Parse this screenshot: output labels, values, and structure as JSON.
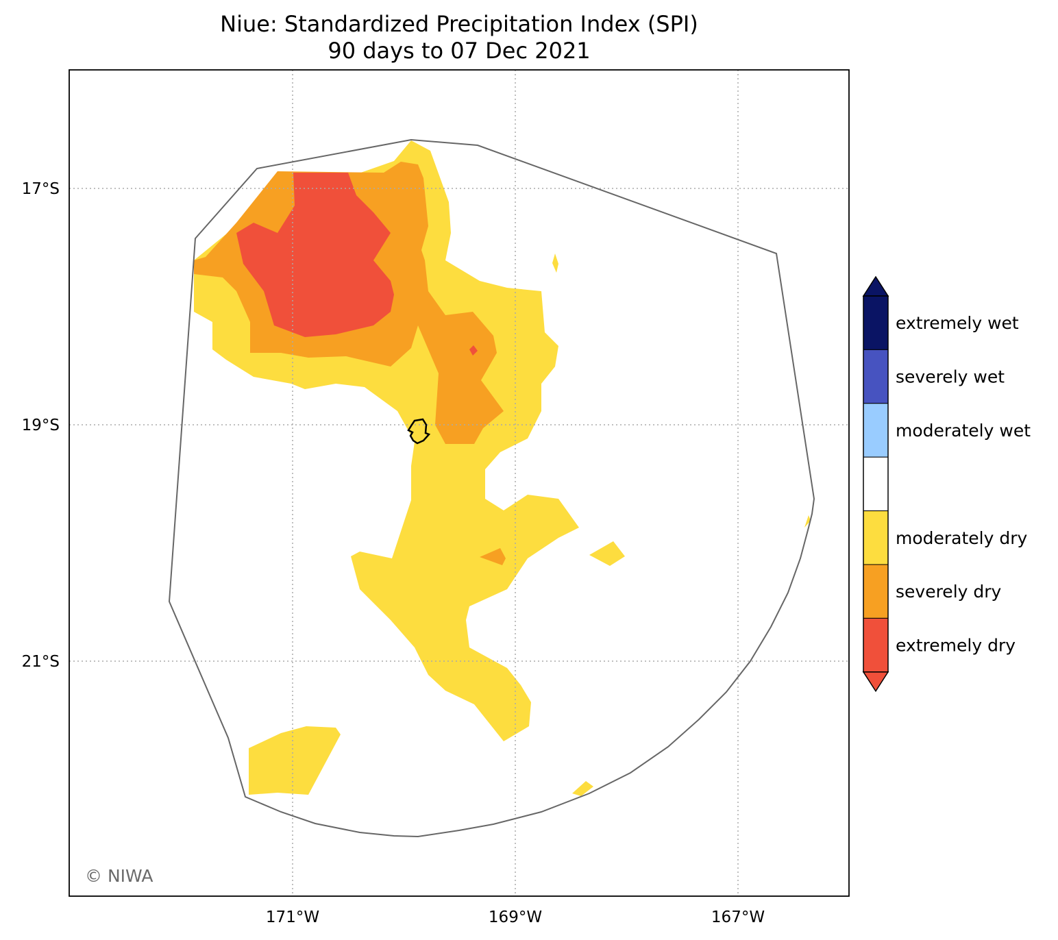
{
  "title": {
    "line1": "Niue: Standardized Precipitation Index (SPI)",
    "line2": "90 days to 07 Dec 2021"
  },
  "map": {
    "lon_range": [
      -173,
      -166
    ],
    "lat_range": [
      -17,
      -21
    ],
    "lon_ticks": [
      {
        "value": -171,
        "label": "171°W"
      },
      {
        "value": -169,
        "label": "169°W"
      },
      {
        "value": -167,
        "label": "167°W"
      }
    ],
    "lat_ticks": [
      {
        "value": -17,
        "label": "17°S"
      },
      {
        "value": -19,
        "label": "19°S"
      },
      {
        "value": -21,
        "label": "21°S"
      }
    ],
    "gridlines": true,
    "credit": "© NIWA",
    "colors": {
      "extremely_dry": "#f0503a",
      "severely_dry": "#f7a022",
      "moderately_dry": "#fddd3f",
      "eez_boundary": "#666666",
      "island_outline": "#000000"
    }
  },
  "legend": {
    "categories": [
      {
        "label": "extremely wet",
        "color": "#0a1464"
      },
      {
        "label": "severely wet",
        "color": "#4753c0"
      },
      {
        "label": "moderately wet",
        "color": "#99ccff"
      },
      {
        "label": "",
        "color": "#ffffff"
      },
      {
        "label": "moderately dry",
        "color": "#fddd3f"
      },
      {
        "label": "severely dry",
        "color": "#f7a022"
      },
      {
        "label": "extremely dry",
        "color": "#f0503a"
      }
    ]
  }
}
